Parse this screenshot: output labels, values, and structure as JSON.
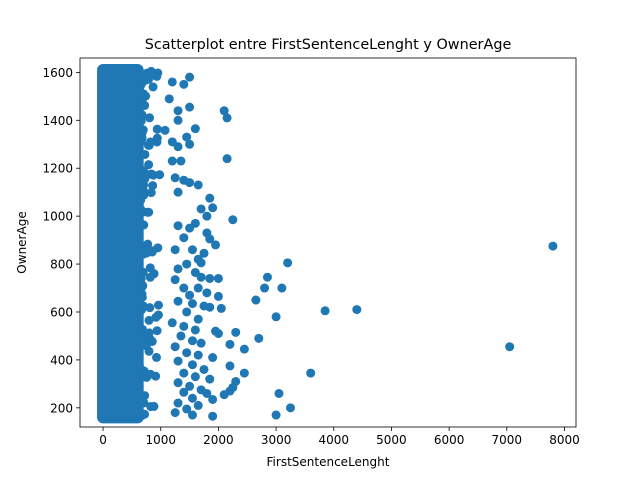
{
  "chart_data": {
    "type": "scatter",
    "title": "Scatterplot entre FirstSentenceLenght y OwnerAge",
    "xlabel": "FirstSentenceLenght",
    "ylabel": "OwnerAge",
    "xlim": [
      -400,
      8200
    ],
    "ylim": [
      120,
      1660
    ],
    "xticks": [
      0,
      1000,
      2000,
      3000,
      4000,
      5000,
      6000,
      7000,
      8000
    ],
    "yticks": [
      200,
      400,
      600,
      800,
      1000,
      1200,
      1400,
      1600
    ],
    "grid": false,
    "legend": "none",
    "color": "#1f77b4",
    "dense_cluster": {
      "x": [
        0,
        600
      ],
      "y": [
        160,
        1610
      ]
    },
    "points": [
      {
        "x": 1200,
        "y": 1560
      },
      {
        "x": 1400,
        "y": 1550
      },
      {
        "x": 1500,
        "y": 1580
      },
      {
        "x": 1300,
        "y": 1440
      },
      {
        "x": 1500,
        "y": 1455
      },
      {
        "x": 1300,
        "y": 1400
      },
      {
        "x": 1600,
        "y": 1365
      },
      {
        "x": 2100,
        "y": 1440
      },
      {
        "x": 2150,
        "y": 1410
      },
      {
        "x": 1200,
        "y": 1310
      },
      {
        "x": 1450,
        "y": 1330
      },
      {
        "x": 1300,
        "y": 1290
      },
      {
        "x": 1500,
        "y": 1300
      },
      {
        "x": 1200,
        "y": 1230
      },
      {
        "x": 1350,
        "y": 1230
      },
      {
        "x": 2150,
        "y": 1240
      },
      {
        "x": 1250,
        "y": 1160
      },
      {
        "x": 1400,
        "y": 1150
      },
      {
        "x": 1500,
        "y": 1140
      },
      {
        "x": 1650,
        "y": 1130
      },
      {
        "x": 1300,
        "y": 1100
      },
      {
        "x": 1850,
        "y": 1075
      },
      {
        "x": 1900,
        "y": 1035
      },
      {
        "x": 1700,
        "y": 1030
      },
      {
        "x": 1800,
        "y": 1000
      },
      {
        "x": 2250,
        "y": 985
      },
      {
        "x": 1600,
        "y": 970
      },
      {
        "x": 1300,
        "y": 960
      },
      {
        "x": 1500,
        "y": 950
      },
      {
        "x": 1800,
        "y": 930
      },
      {
        "x": 1400,
        "y": 910
      },
      {
        "x": 1850,
        "y": 905
      },
      {
        "x": 1950,
        "y": 880
      },
      {
        "x": 1250,
        "y": 860
      },
      {
        "x": 1550,
        "y": 860
      },
      {
        "x": 1750,
        "y": 845
      },
      {
        "x": 1650,
        "y": 820
      },
      {
        "x": 1450,
        "y": 800
      },
      {
        "x": 1700,
        "y": 805
      },
      {
        "x": 1300,
        "y": 780
      },
      {
        "x": 1600,
        "y": 765
      },
      {
        "x": 1700,
        "y": 745
      },
      {
        "x": 1850,
        "y": 740
      },
      {
        "x": 2000,
        "y": 740
      },
      {
        "x": 1250,
        "y": 735
      },
      {
        "x": 1400,
        "y": 700
      },
      {
        "x": 1650,
        "y": 700
      },
      {
        "x": 1800,
        "y": 680
      },
      {
        "x": 1500,
        "y": 670
      },
      {
        "x": 2000,
        "y": 665
      },
      {
        "x": 1300,
        "y": 645
      },
      {
        "x": 1550,
        "y": 635
      },
      {
        "x": 1750,
        "y": 625
      },
      {
        "x": 1850,
        "y": 620
      },
      {
        "x": 2050,
        "y": 615
      },
      {
        "x": 1450,
        "y": 600
      },
      {
        "x": 1650,
        "y": 570
      },
      {
        "x": 1200,
        "y": 555
      },
      {
        "x": 1400,
        "y": 540
      },
      {
        "x": 1600,
        "y": 525
      },
      {
        "x": 1950,
        "y": 520
      },
      {
        "x": 2000,
        "y": 510
      },
      {
        "x": 2300,
        "y": 515
      },
      {
        "x": 1350,
        "y": 500
      },
      {
        "x": 1550,
        "y": 480
      },
      {
        "x": 1700,
        "y": 470
      },
      {
        "x": 2200,
        "y": 465
      },
      {
        "x": 1250,
        "y": 455
      },
      {
        "x": 2450,
        "y": 445
      },
      {
        "x": 1450,
        "y": 430
      },
      {
        "x": 1650,
        "y": 420
      },
      {
        "x": 1900,
        "y": 410
      },
      {
        "x": 1300,
        "y": 395
      },
      {
        "x": 1550,
        "y": 380
      },
      {
        "x": 2200,
        "y": 375
      },
      {
        "x": 1750,
        "y": 360
      },
      {
        "x": 1400,
        "y": 345
      },
      {
        "x": 2450,
        "y": 345
      },
      {
        "x": 1600,
        "y": 330
      },
      {
        "x": 1850,
        "y": 320
      },
      {
        "x": 2300,
        "y": 310
      },
      {
        "x": 1300,
        "y": 305
      },
      {
        "x": 1500,
        "y": 290
      },
      {
        "x": 2250,
        "y": 285
      },
      {
        "x": 1700,
        "y": 275
      },
      {
        "x": 2200,
        "y": 270
      },
      {
        "x": 1400,
        "y": 265
      },
      {
        "x": 1800,
        "y": 260
      },
      {
        "x": 2100,
        "y": 255
      },
      {
        "x": 1550,
        "y": 240
      },
      {
        "x": 1900,
        "y": 235
      },
      {
        "x": 1300,
        "y": 220
      },
      {
        "x": 1650,
        "y": 210
      },
      {
        "x": 1450,
        "y": 195
      },
      {
        "x": 1250,
        "y": 180
      },
      {
        "x": 1550,
        "y": 170
      },
      {
        "x": 1900,
        "y": 165
      },
      {
        "x": 2650,
        "y": 650
      },
      {
        "x": 2800,
        "y": 700
      },
      {
        "x": 2850,
        "y": 745
      },
      {
        "x": 3100,
        "y": 700
      },
      {
        "x": 3200,
        "y": 805
      },
      {
        "x": 3000,
        "y": 580
      },
      {
        "x": 2700,
        "y": 490
      },
      {
        "x": 3850,
        "y": 605
      },
      {
        "x": 4400,
        "y": 610
      },
      {
        "x": 3600,
        "y": 345
      },
      {
        "x": 3050,
        "y": 260
      },
      {
        "x": 3250,
        "y": 200
      },
      {
        "x": 3000,
        "y": 170
      },
      {
        "x": 7050,
        "y": 455
      },
      {
        "x": 7800,
        "y": 875
      }
    ]
  }
}
